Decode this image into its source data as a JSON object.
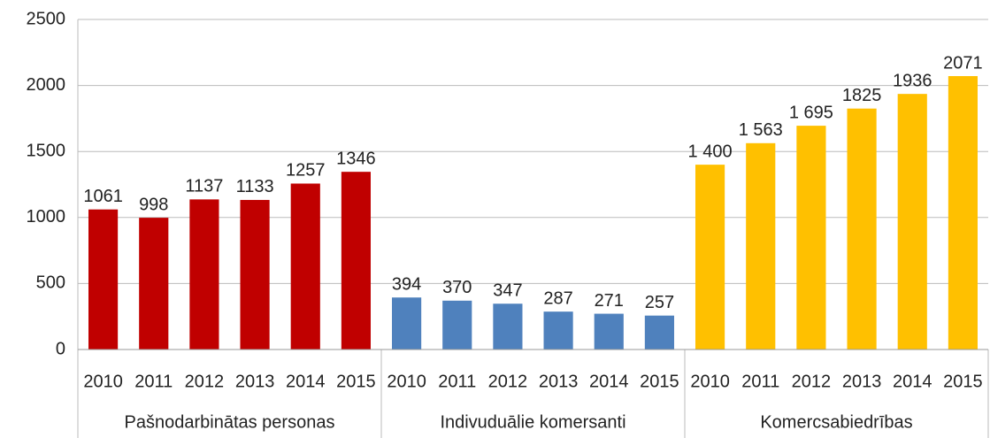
{
  "chart_data": {
    "type": "bar",
    "groups": [
      {
        "name": "Pašnodarbinātas personas",
        "color": "#c00000",
        "categories": [
          "2010",
          "2011",
          "2012",
          "2013",
          "2014",
          "2015"
        ],
        "values": [
          1061,
          998,
          1137,
          1133,
          1257,
          1346
        ]
      },
      {
        "name": "Indivuduālie komersanti",
        "color": "#4f81bd",
        "categories": [
          "2010",
          "2011",
          "2012",
          "2013",
          "2014",
          "2015"
        ],
        "values": [
          394,
          370,
          347,
          287,
          271,
          257
        ]
      },
      {
        "name": "Komercsabiedrības",
        "color": "#ffc000",
        "categories": [
          "2010",
          "2011",
          "2012",
          "2013",
          "2014",
          "2015"
        ],
        "values": [
          1400,
          1563,
          1695,
          1825,
          1936,
          2071
        ],
        "value_labels": [
          "1 400",
          "1 563",
          "1 695",
          "1825",
          "1936",
          "2071"
        ]
      }
    ],
    "ylim": [
      0,
      2500
    ],
    "yticks": [
      0,
      500,
      1000,
      1500,
      2000,
      2500
    ],
    "grid": true
  }
}
